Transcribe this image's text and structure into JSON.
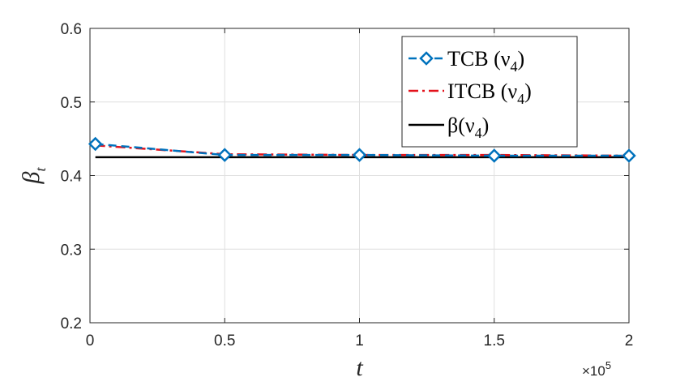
{
  "chart_data": {
    "type": "line",
    "xlabel": "t",
    "ylabel": "β",
    "ylabel_sub": "t",
    "xlim": [
      0,
      200000
    ],
    "ylim": [
      0.2,
      0.6
    ],
    "x_scale_exponent_label": "×10",
    "x_scale_exponent_power": "5",
    "xticks": [
      0,
      50000,
      100000,
      150000,
      200000
    ],
    "xtick_labels": [
      "0",
      "0.5",
      "1",
      "1.5",
      "2"
    ],
    "yticks": [
      0.2,
      0.3,
      0.4,
      0.5,
      0.6
    ],
    "ytick_labels": [
      "0.2",
      "0.3",
      "0.4",
      "0.5",
      "0.6"
    ],
    "grid": true,
    "legend_position": "top-right",
    "series": [
      {
        "name": "TCB (ν",
        "name_sub": "4",
        "name_end": ")",
        "style": "dashed",
        "marker": "diamond",
        "color": "#0072BD",
        "x": [
          2000,
          50000,
          100000,
          150000,
          200000
        ],
        "y": [
          0.443,
          0.428,
          0.428,
          0.427,
          0.427
        ]
      },
      {
        "name": "ITCB (ν",
        "name_sub": "4",
        "name_end": ")",
        "style": "dashdot",
        "marker": "none",
        "color": "#E3121B",
        "x": [
          2000,
          50000,
          100000,
          150000,
          200000
        ],
        "y": [
          0.441,
          0.429,
          0.428,
          0.428,
          0.427
        ]
      },
      {
        "name": "β(ν",
        "name_sub": "4",
        "name_end": ")",
        "style": "solid",
        "marker": "none",
        "color": "#000000",
        "x": [
          2000,
          200000
        ],
        "y": [
          0.425,
          0.425
        ]
      }
    ]
  }
}
